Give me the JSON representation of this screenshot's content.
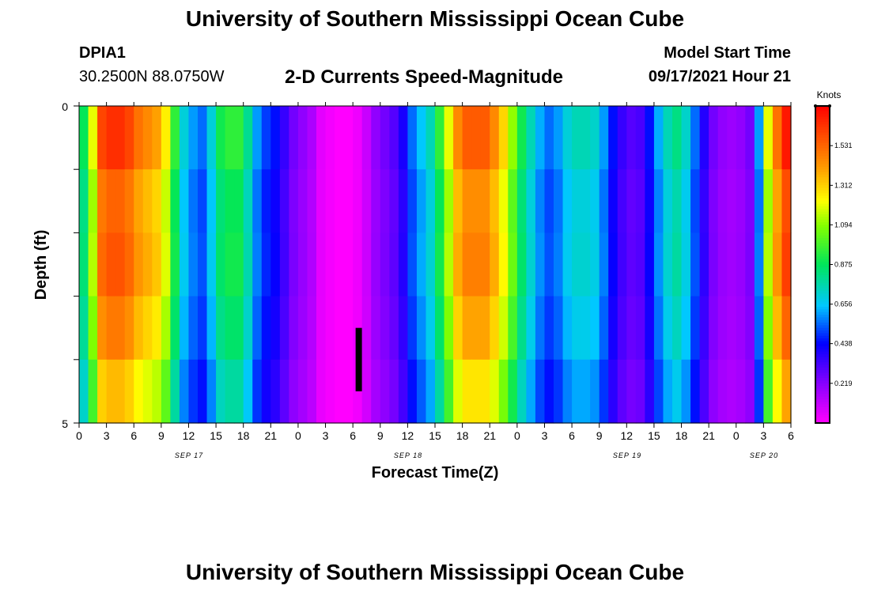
{
  "header": {
    "title": "University of Southern Mississippi Ocean Cube",
    "station_id": "DPIA1",
    "coords": "30.2500N  88.0750W",
    "plot_title": "2-D Currents Speed-Magnitude",
    "model_label": "Model Start Time",
    "model_time": "09/17/2021 Hour 21"
  },
  "footer": {
    "title": "University of Southern Mississippi Ocean Cube"
  },
  "chart_data": {
    "type": "heatmap",
    "title": "2-D Currents Speed-Magnitude",
    "xlabel": "Forecast Time(Z)",
    "ylabel": "Depth (ft)",
    "x_tick_labels": [
      "0",
      "3",
      "6",
      "9",
      "12",
      "15",
      "18",
      "21",
      "0",
      "3",
      "6",
      "9",
      "12",
      "15",
      "18",
      "21",
      "0",
      "3",
      "6",
      "9",
      "12",
      "15",
      "18",
      "21",
      "0",
      "3",
      "6"
    ],
    "date_labels": [
      "SEP 17",
      "SEP 18",
      "SEP 19",
      "SEP 20"
    ],
    "y_tick_labels": [
      "0",
      "5"
    ],
    "ylim": [
      0,
      5
    ],
    "hours": 78,
    "colorbar": {
      "label": "Knots",
      "tick_labels": [
        "1.531",
        "1.312",
        "1.094",
        "0.875",
        "0.656",
        "0.438",
        "0.219"
      ],
      "min": 0,
      "max": 1.75
    },
    "speed_by_hour_knots": [
      0.88,
      1.2,
      1.6,
      1.65,
      1.65,
      1.6,
      1.5,
      1.45,
      1.4,
      1.25,
      0.95,
      0.7,
      0.6,
      0.55,
      0.7,
      0.9,
      0.95,
      0.95,
      0.8,
      0.6,
      0.5,
      0.45,
      0.35,
      0.25,
      0.2,
      0.15,
      0.05,
      0.02,
      0.0,
      0.0,
      0.03,
      0.1,
      0.2,
      0.25,
      0.3,
      0.4,
      0.55,
      0.65,
      0.75,
      0.95,
      1.2,
      1.45,
      1.55,
      1.55,
      1.55,
      1.45,
      1.3,
      1.1,
      0.9,
      0.75,
      0.62,
      0.55,
      0.6,
      0.7,
      0.75,
      0.75,
      0.72,
      0.6,
      0.45,
      0.35,
      0.3,
      0.32,
      0.45,
      0.62,
      0.75,
      0.82,
      0.72,
      0.55,
      0.38,
      0.25,
      0.2,
      0.18,
      0.2,
      0.25,
      0.6,
      1.2,
      1.5,
      1.7
    ],
    "depth_bands": 5,
    "band_factor": [
      1.0,
      0.93,
      0.95,
      0.9,
      0.82
    ],
    "highlight_marker_hour": 30
  }
}
